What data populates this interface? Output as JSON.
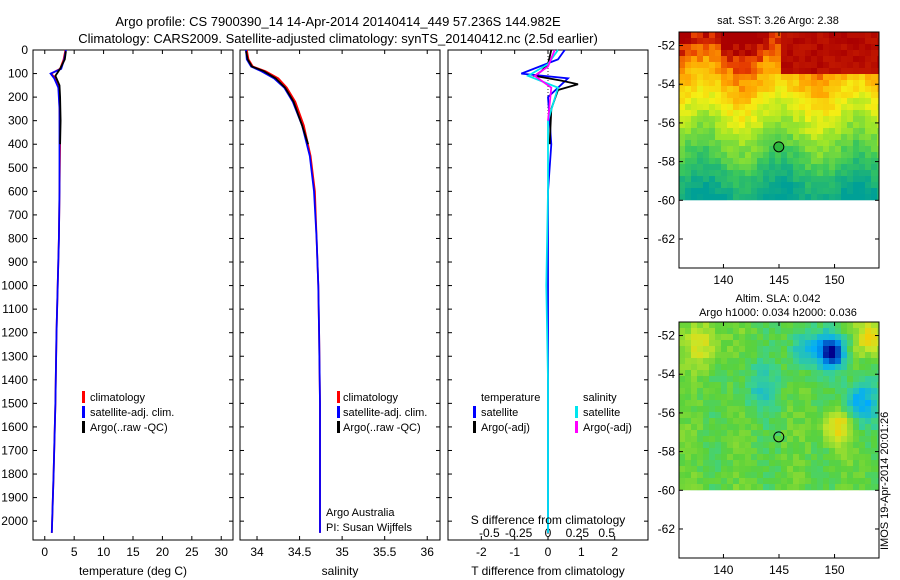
{
  "title": {
    "line1": "Argo profile: CS 7900390_14 14-Apr-2014 20140414_449 57.236S 144.982E",
    "line2": "Climatology: CARS2009. Satellite-adjusted climatology: synTS_20140412.nc (2.5d earlier)"
  },
  "colors": {
    "climatology": "#ff0000",
    "satellite": "#0000ff",
    "argo": "#000000",
    "sal_satellite": "#00e5ee",
    "sal_argo": "#ff00ff"
  },
  "depth_axis": {
    "ticks": [
      "0",
      "100",
      "200",
      "300",
      "400",
      "500",
      "600",
      "700",
      "800",
      "900",
      "1000",
      "1100",
      "1200",
      "1300",
      "1400",
      "1500",
      "1600",
      "1700",
      "1800",
      "1900",
      "2000"
    ]
  },
  "chart_data": [
    {
      "type": "line",
      "xlabel": "temperature (deg C)",
      "xticks": [
        "0",
        "5",
        "10",
        "15",
        "20",
        "25",
        "30"
      ],
      "xlim": [
        -2,
        32
      ],
      "ylim": [
        2080,
        0
      ],
      "legend": {
        "placement": "lower-left",
        "entries": [
          "climatology",
          "satellite-adj. clim.",
          "Argo(..raw -QC)"
        ]
      },
      "series": [
        {
          "name": "climatology",
          "color": "#ff0000",
          "x": [
            3.5,
            3.2,
            2.6,
            1.1,
            1.8,
            2.4,
            2.5,
            2.6,
            2.5,
            2.4,
            2.2,
            2.0,
            1.8,
            1.5,
            1.2
          ],
          "y": [
            0,
            40,
            80,
            100,
            120,
            160,
            250,
            400,
            600,
            800,
            1000,
            1200,
            1500,
            1800,
            2050
          ]
        },
        {
          "name": "satellite-adj. clim.",
          "color": "#0000ff",
          "x": [
            3.6,
            3.3,
            2.8,
            1.0,
            1.6,
            2.3,
            2.5,
            2.5,
            2.5,
            2.4,
            2.2,
            2.0,
            1.8,
            1.5,
            1.2
          ],
          "y": [
            0,
            40,
            80,
            100,
            120,
            160,
            250,
            400,
            600,
            800,
            1000,
            1200,
            1500,
            1800,
            2050
          ]
        },
        {
          "name": "Argo(..raw -QC)",
          "color": "#000000",
          "x": [
            3.6,
            3.4,
            2.6,
            1.8,
            2.5,
            2.6,
            2.7,
            2.6
          ],
          "y": [
            5,
            40,
            80,
            110,
            150,
            200,
            300,
            400
          ]
        }
      ]
    },
    {
      "type": "line",
      "xlabel": "salinity",
      "xticks": [
        "34",
        "34.5",
        "35",
        "35.5",
        "36"
      ],
      "xlim": [
        33.8,
        36.15
      ],
      "ylim": [
        2080,
        0
      ],
      "legend": {
        "placement": "lower-right",
        "entries": [
          "climatology",
          "satellite-adj. clim.",
          "Argo(..raw -QC)"
        ]
      },
      "annotation": {
        "line1": "Argo Australia",
        "line2": "PI: Susan Wijffels"
      },
      "series": [
        {
          "name": "climatology",
          "color": "#ff0000",
          "x": [
            33.88,
            33.9,
            33.95,
            34.1,
            34.25,
            34.35,
            34.45,
            34.55,
            34.63,
            34.68,
            34.7,
            34.72,
            34.73,
            34.74,
            34.74,
            34.74
          ],
          "y": [
            0,
            40,
            70,
            90,
            120,
            160,
            220,
            320,
            450,
            600,
            800,
            1000,
            1200,
            1500,
            1800,
            2050
          ]
        },
        {
          "name": "satellite-adj. clim.",
          "color": "#0000ff",
          "x": [
            33.87,
            33.88,
            33.93,
            34.05,
            34.2,
            34.32,
            34.42,
            34.53,
            34.62,
            34.67,
            34.7,
            34.72,
            34.73,
            34.74,
            34.74,
            34.74
          ],
          "y": [
            0,
            40,
            70,
            90,
            120,
            160,
            220,
            320,
            450,
            600,
            800,
            1000,
            1200,
            1500,
            1800,
            2050
          ]
        },
        {
          "name": "Argo(..raw -QC)",
          "color": "#000000",
          "x": [
            33.87,
            33.89,
            33.94,
            34.08,
            34.22,
            34.33,
            34.43,
            34.53,
            34.6
          ],
          "y": [
            5,
            40,
            70,
            90,
            120,
            160,
            220,
            320,
            400
          ]
        }
      ]
    },
    {
      "type": "line",
      "xlabel": "T difference from climatology",
      "xticks": [
        "-2",
        "-1",
        "0",
        "1",
        "2"
      ],
      "xlim": [
        -3,
        3
      ],
      "x2label": "S difference from climatology",
      "x2ticks": [
        "-0.5",
        "-0.25",
        "0",
        "0.25",
        "0.5"
      ],
      "ylim": [
        2080,
        0
      ],
      "legend": {
        "placement": "lower",
        "temperature_header": "temperature",
        "salinity_header": "salinity",
        "entries": [
          "satellite",
          "Argo(-adj)",
          "satellite",
          "Argo(-adj)"
        ]
      },
      "series": [
        {
          "name": "satellite",
          "color": "#0000ff",
          "x": [
            0.5,
            0.3,
            -0.8,
            0.6,
            0.0,
            0.1,
            0.0,
            0.0,
            0.0,
            0.0,
            0.0,
            0.0
          ],
          "y": [
            0,
            40,
            100,
            120,
            200,
            400,
            600,
            800,
            1000,
            1400,
            1800,
            2050
          ]
        },
        {
          "name": "Argo(-adj)",
          "color": "#000000",
          "x": [
            0.1,
            0.0,
            -0.2,
            -0.4,
            0.4,
            0.9,
            0.3,
            0.1,
            0.05
          ],
          "y": [
            0,
            60,
            90,
            110,
            130,
            145,
            170,
            250,
            400
          ]
        },
        {
          "name": "satellite",
          "color": "#00e5ee",
          "x": [
            0.3,
            0.0,
            -0.6,
            0.3,
            0.0,
            0.0,
            -0.05,
            0.0,
            0.0,
            0.0
          ],
          "y": [
            0,
            60,
            110,
            160,
            300,
            600,
            1000,
            1400,
            1800,
            2050
          ]
        },
        {
          "name": "Argo(-adj)",
          "color": "#ff00ff",
          "x": [
            0.2,
            0.0,
            -0.4,
            0.1,
            0.0
          ],
          "y": [
            0,
            70,
            110,
            160,
            300
          ]
        }
      ]
    },
    {
      "type": "heatmap",
      "title": "sat. SST: 3.26 Argo: 2.38",
      "xticks": [
        "140",
        "145",
        "150"
      ],
      "yticks": [
        "-52",
        "-54",
        "-56",
        "-58",
        "-60",
        "-62"
      ],
      "xlim": [
        136,
        154
      ],
      "ylim": [
        -63.5,
        -51.3
      ],
      "data_extent_lat": [
        -60,
        -51.3
      ],
      "marker": {
        "lon": 144.982,
        "lat": -57.236
      }
    },
    {
      "type": "heatmap",
      "title": "Altim. SLA: 0.042",
      "subtitle": "Argo h1000: 0.034 h2000: 0.036",
      "xticks": [
        "140",
        "145",
        "150"
      ],
      "yticks": [
        "-52",
        "-54",
        "-56",
        "-58",
        "-60",
        "-62"
      ],
      "xlim": [
        136,
        154
      ],
      "ylim": [
        -63.5,
        -51.3
      ],
      "data_extent_lat": [
        -60,
        -51.3
      ],
      "marker": {
        "lon": 144.982,
        "lat": -57.236
      }
    }
  ],
  "watermark": "IMOS 19-Apr-2014 20:01:26"
}
